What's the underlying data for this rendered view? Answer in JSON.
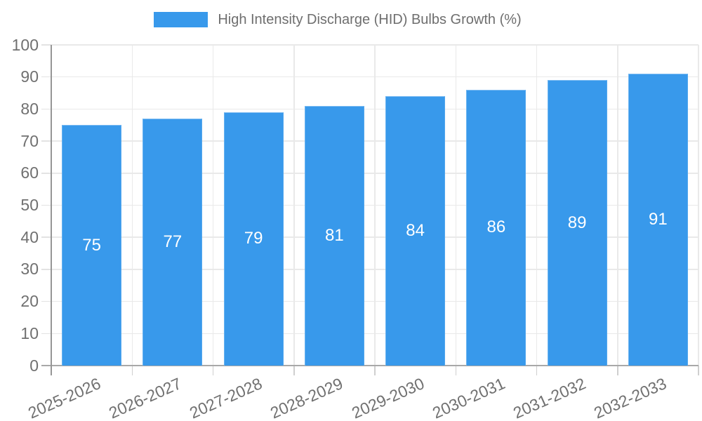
{
  "legend": {
    "label": "High Intensity Discharge (HID) Bulbs Growth (%)",
    "swatch_color": "#3899EB"
  },
  "colors": {
    "bar": "#3899EB",
    "grid": "#e9e9e9",
    "axis": "#9a9a9a",
    "tick_text": "#707070",
    "value_text": "#ffffff",
    "background": "#ffffff"
  },
  "chart_data": {
    "type": "bar",
    "title": "High Intensity Discharge (HID) Bulbs Growth (%)",
    "categories": [
      "2025-2026",
      "2026-2027",
      "2027-2028",
      "2028-2029",
      "2029-2030",
      "2030-2031",
      "2031-2032",
      "2032-2033"
    ],
    "values": [
      75,
      77,
      79,
      81,
      84,
      86,
      89,
      91
    ],
    "series_name": "High Intensity Discharge (HID) Bulbs Growth (%)",
    "xlabel": "",
    "ylabel": "",
    "ylim": [
      0,
      100
    ],
    "yticks": [
      0,
      10,
      20,
      30,
      40,
      50,
      60,
      70,
      80,
      90,
      100
    ],
    "grid": true,
    "legend_position": "top",
    "value_labels_position": "inside-center",
    "x_label_rotation_deg": -24,
    "bar_color": "#3899EB"
  }
}
